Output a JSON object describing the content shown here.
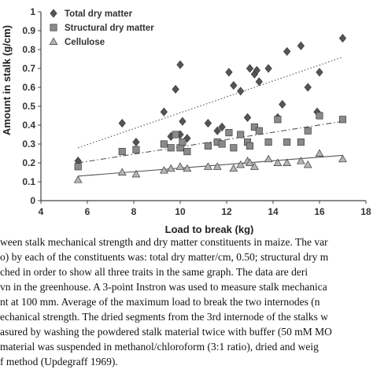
{
  "chart_data": {
    "type": "scatter",
    "xlabel": "Load to break (kg)",
    "ylabel": "Amount in stalk (g/cm)",
    "xlim": [
      4,
      18
    ],
    "ylim": [
      0,
      1
    ],
    "x_ticks": [
      4,
      6,
      8,
      10,
      12,
      14,
      16,
      18
    ],
    "y_ticks": [
      0,
      0.1,
      0.2,
      0.3,
      0.4,
      0.5,
      0.6,
      0.7,
      0.8,
      0.9,
      1
    ],
    "x_tick_labels": [
      "4",
      "6",
      "8",
      "10",
      "12",
      "14",
      "16",
      "18"
    ],
    "y_tick_labels": [
      "0",
      "0.1",
      "0.2",
      "0.3",
      "0.4",
      "0.5",
      "0.6",
      "0.7",
      "0.8",
      "0.9",
      "1"
    ],
    "legend_position": "top-left",
    "grid": false,
    "series": [
      {
        "name": "Total dry matter",
        "marker": "diamond",
        "color": "#555555",
        "trendline": "dotted",
        "trend": [
          [
            5.6,
            0.28
          ],
          [
            17.0,
            0.76
          ]
        ],
        "points": [
          [
            5.6,
            0.21
          ],
          [
            7.5,
            0.41
          ],
          [
            8.1,
            0.31
          ],
          [
            9.3,
            0.47
          ],
          [
            9.6,
            0.34
          ],
          [
            9.8,
            0.59
          ],
          [
            10.0,
            0.35
          ],
          [
            10.0,
            0.72
          ],
          [
            10.1,
            0.42
          ],
          [
            10.3,
            0.33
          ],
          [
            11.2,
            0.41
          ],
          [
            11.6,
            0.37
          ],
          [
            11.8,
            0.39
          ],
          [
            12.1,
            0.68
          ],
          [
            12.3,
            0.61
          ],
          [
            12.6,
            0.58
          ],
          [
            12.9,
            0.44
          ],
          [
            13.0,
            0.7
          ],
          [
            13.2,
            0.67
          ],
          [
            13.3,
            0.69
          ],
          [
            13.4,
            0.63
          ],
          [
            13.8,
            0.7
          ],
          [
            14.2,
            0.44
          ],
          [
            14.4,
            0.51
          ],
          [
            14.6,
            0.79
          ],
          [
            15.2,
            0.82
          ],
          [
            15.5,
            0.6
          ],
          [
            15.9,
            0.47
          ],
          [
            16.0,
            0.68
          ],
          [
            17.0,
            0.86
          ]
        ]
      },
      {
        "name": "Structural dry matter",
        "marker": "square",
        "color": "#8a8a8a",
        "trendline": "dash-dot",
        "trend": [
          [
            5.6,
            0.2
          ],
          [
            17.0,
            0.42
          ]
        ],
        "points": [
          [
            5.6,
            0.18
          ],
          [
            7.5,
            0.26
          ],
          [
            8.1,
            0.27
          ],
          [
            9.3,
            0.3
          ],
          [
            9.6,
            0.28
          ],
          [
            9.8,
            0.35
          ],
          [
            10.0,
            0.28
          ],
          [
            10.1,
            0.31
          ],
          [
            10.3,
            0.26
          ],
          [
            11.2,
            0.29
          ],
          [
            11.6,
            0.31
          ],
          [
            11.8,
            0.3
          ],
          [
            12.1,
            0.36
          ],
          [
            12.3,
            0.28
          ],
          [
            12.6,
            0.35
          ],
          [
            12.9,
            0.31
          ],
          [
            13.0,
            0.29
          ],
          [
            13.2,
            0.39
          ],
          [
            13.4,
            0.37
          ],
          [
            13.8,
            0.31
          ],
          [
            14.2,
            0.43
          ],
          [
            14.6,
            0.31
          ],
          [
            15.2,
            0.31
          ],
          [
            15.5,
            0.37
          ],
          [
            16.0,
            0.45
          ],
          [
            17.0,
            0.43
          ]
        ]
      },
      {
        "name": "Cellulose",
        "marker": "triangle",
        "color": "#b5b5b5",
        "trendline": "solid",
        "trend": [
          [
            5.6,
            0.13
          ],
          [
            17.0,
            0.24
          ]
        ],
        "points": [
          [
            5.6,
            0.11
          ],
          [
            7.5,
            0.15
          ],
          [
            8.1,
            0.14
          ],
          [
            9.3,
            0.16
          ],
          [
            9.6,
            0.17
          ],
          [
            10.0,
            0.18
          ],
          [
            10.3,
            0.17
          ],
          [
            11.2,
            0.18
          ],
          [
            11.6,
            0.18
          ],
          [
            12.3,
            0.17
          ],
          [
            12.6,
            0.19
          ],
          [
            12.9,
            0.21
          ],
          [
            13.0,
            0.2
          ],
          [
            13.2,
            0.18
          ],
          [
            13.8,
            0.22
          ],
          [
            14.2,
            0.2
          ],
          [
            14.6,
            0.2
          ],
          [
            15.2,
            0.21
          ],
          [
            15.5,
            0.19
          ],
          [
            16.0,
            0.25
          ],
          [
            17.0,
            0.22
          ]
        ]
      }
    ]
  },
  "caption": {
    "lines": [
      "ween stalk mechanical strength and dry matter constituents in maize. The var",
      "o) by each of the constituents was: total dry matter/cm, 0.50; structural dry m",
      "ched in order to show all three traits in the same graph. The data are deri",
      "vn in the greenhouse. A 3-point Instron was used to measure stalk mechanica",
      "nt at 100 mm. Average of the maximum load to break the two internodes (n",
      "echanical strength. The dried segments from the 3rd internode of the stalks w",
      "asured by washing the powdered stalk material twice with buffer (50 mM MO",
      "material was suspended in methanol/chloroform (3:1 ratio), dried and weig",
      "f method (Updegraff 1969)."
    ]
  }
}
